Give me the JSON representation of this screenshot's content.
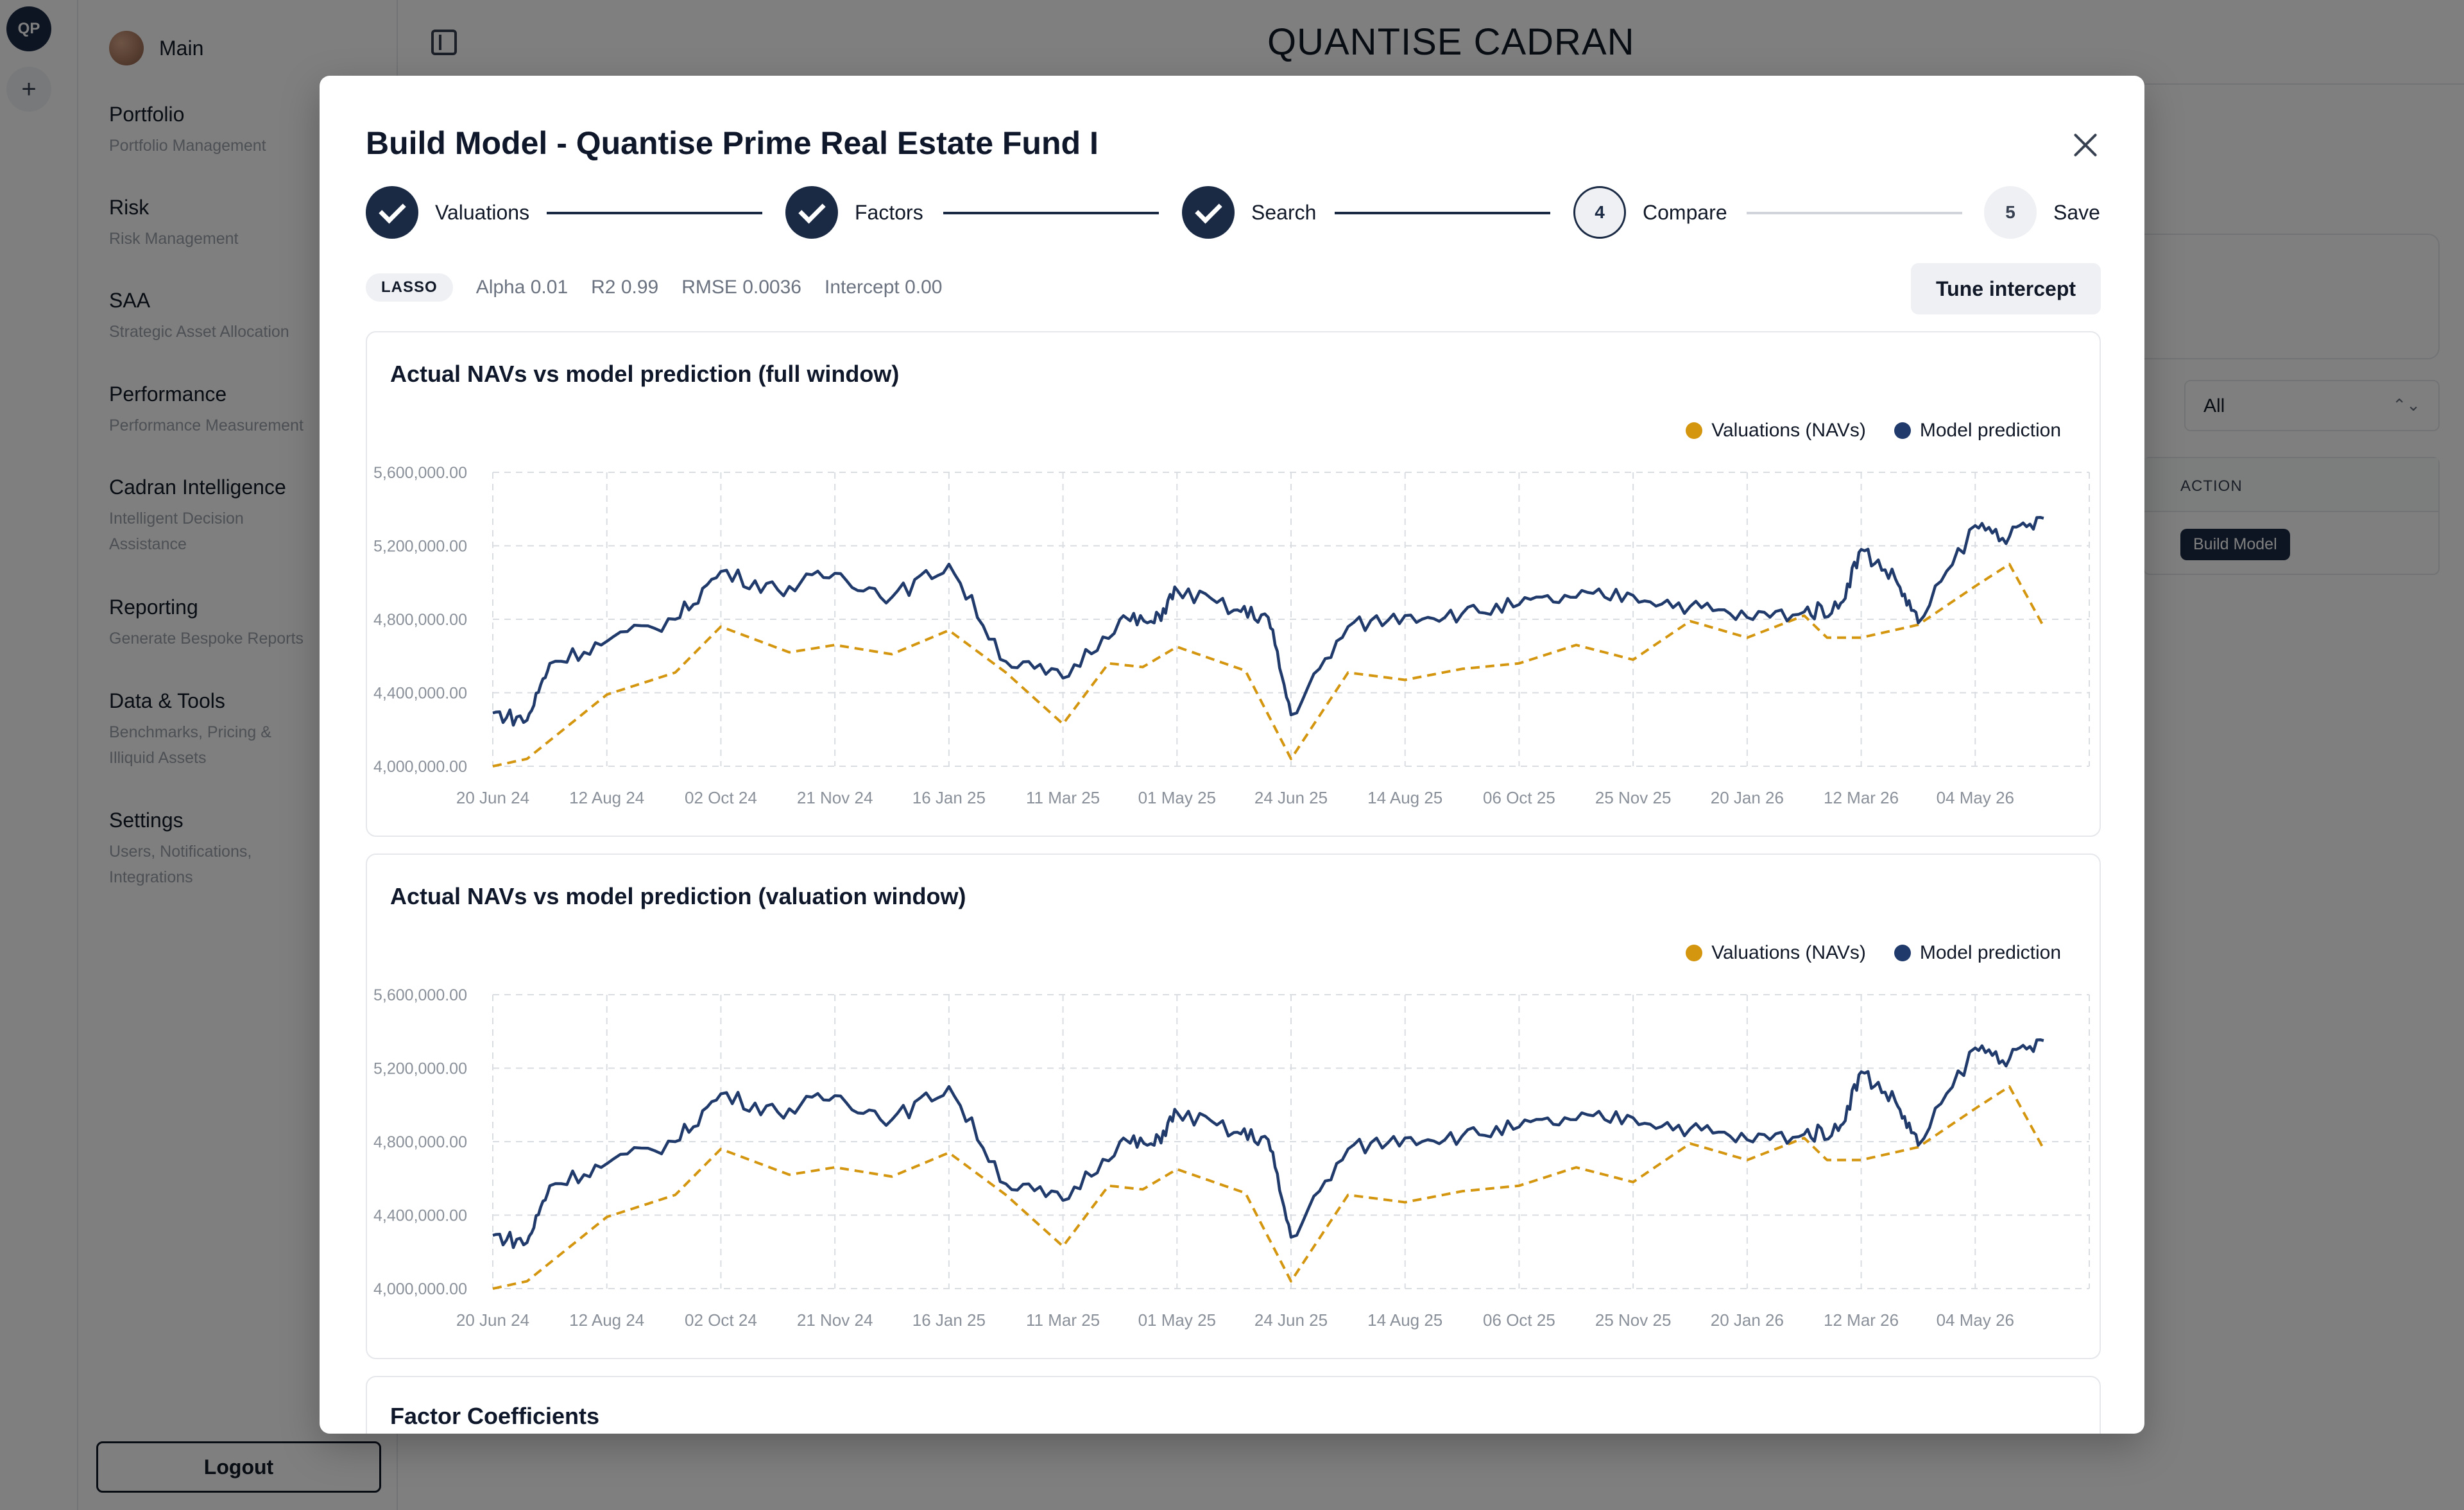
{
  "rail": {
    "avatar": "QP",
    "add": "+"
  },
  "sidebar": {
    "main": "Main",
    "items": [
      {
        "title": "Portfolio",
        "subtitle": "Portfolio Management"
      },
      {
        "title": "Risk",
        "subtitle": "Risk Management"
      },
      {
        "title": "SAA",
        "subtitle": "Strategic Asset Allocation"
      },
      {
        "title": "Performance",
        "subtitle": "Performance Measurement"
      },
      {
        "title": "Cadran Intelligence",
        "subtitle": "Intelligent Decision Assistance"
      },
      {
        "title": "Reporting",
        "subtitle": "Generate Bespoke Reports"
      },
      {
        "title": "Data & Tools",
        "subtitle": "Benchmarks, Pricing & Illiquid Assets"
      },
      {
        "title": "Settings",
        "subtitle": "Users, Notifications, Integrations"
      }
    ],
    "logout": "Logout"
  },
  "header": {
    "title": "QUANTISE CADRAN"
  },
  "background": {
    "filter_value": "All",
    "table_header": "ACTION",
    "build_button": "Build Model"
  },
  "modal": {
    "title": "Build Model - Quantise Prime Real Estate Fund I",
    "steps": [
      {
        "label": "Valuations",
        "state": "done"
      },
      {
        "label": "Factors",
        "state": "done"
      },
      {
        "label": "Search",
        "state": "done"
      },
      {
        "label": "Compare",
        "state": "active",
        "number": "4"
      },
      {
        "label": "Save",
        "state": "todo",
        "number": "5"
      }
    ],
    "model_badge": "LASSO",
    "metrics": {
      "alpha": "Alpha 0.01",
      "r2": "R2 0.99",
      "rmse": "RMSE 0.0036",
      "intercept": "Intercept 0.00"
    },
    "tune_button": "Tune intercept",
    "coef_title": "Factor Coefficients"
  },
  "colors": {
    "valuations": "#d4960f",
    "prediction": "#1f3a6b"
  },
  "chart_data": [
    {
      "type": "line",
      "title": "Actual NAVs vs model prediction (full window)",
      "x_ticks": [
        "20 Jun 24",
        "12 Aug 24",
        "02 Oct 24",
        "21 Nov 24",
        "16 Jan 25",
        "11 Mar 25",
        "01 May 25",
        "24 Jun 25",
        "14 Aug 25",
        "06 Oct 25",
        "25 Nov 25",
        "20 Jan 26",
        "12 Mar 26",
        "04 May 26"
      ],
      "y_ticks": [
        "5,600,000.00",
        "5,200,000.00",
        "4,800,000.00",
        "4,400,000.00",
        "4,000,000.00"
      ],
      "ylim": [
        4000000,
        5600000
      ],
      "legend": "top-right",
      "grid": true,
      "series": [
        {
          "name": "Valuations (NAVs)",
          "style": "dashed",
          "x": [
            0,
            0.3,
            1,
            1.6,
            2,
            2.6,
            3,
            3.5,
            4,
            4.5,
            5,
            5.4,
            5.7,
            6,
            6.6,
            7,
            7.5,
            8,
            8.5,
            9,
            9.5,
            10,
            10.5,
            11,
            11.5,
            11.7,
            12,
            12.5,
            13,
            13.3,
            13.6
          ],
          "values": [
            4000000,
            4040000,
            4390000,
            4510000,
            4760000,
            4620000,
            4660000,
            4610000,
            4740000,
            4510000,
            4230000,
            4560000,
            4540000,
            4650000,
            4520000,
            4040000,
            4510000,
            4470000,
            4530000,
            4560000,
            4660000,
            4580000,
            4790000,
            4700000,
            4820000,
            4700000,
            4700000,
            4770000,
            4980000,
            5100000,
            4760000
          ]
        },
        {
          "name": "Model prediction",
          "style": "solid",
          "x": [
            0,
            0.3,
            0.5,
            1,
            1.6,
            2,
            2.5,
            3,
            3.5,
            4,
            4.5,
            5,
            5.5,
            5.8,
            6,
            6.5,
            6.8,
            7,
            7.5,
            8,
            8.5,
            9,
            9.5,
            10,
            10.5,
            11,
            11.5,
            11.8,
            12,
            12.3,
            12.5,
            13,
            13.3,
            13.6
          ],
          "values": [
            4290000,
            4250000,
            4560000,
            4680000,
            4800000,
            5060000,
            4960000,
            5050000,
            4920000,
            5100000,
            4570000,
            4480000,
            4800000,
            4780000,
            4960000,
            4850000,
            4810000,
            4280000,
            4760000,
            4820000,
            4830000,
            4880000,
            4920000,
            4930000,
            4870000,
            4810000,
            4840000,
            4860000,
            5180000,
            5020000,
            4780000,
            5310000,
            5250000,
            5350000
          ]
        }
      ]
    },
    {
      "type": "line",
      "title": "Actual NAVs vs model prediction (valuation window)",
      "x_ticks": [
        "20 Jun 24",
        "12 Aug 24",
        "02 Oct 24",
        "21 Nov 24",
        "16 Jan 25",
        "11 Mar 25",
        "01 May 25",
        "24 Jun 25",
        "14 Aug 25",
        "06 Oct 25",
        "25 Nov 25",
        "20 Jan 26",
        "12 Mar 26",
        "04 May 26"
      ],
      "y_ticks": [
        "5,600,000.00",
        "5,200,000.00",
        "4,800,000.00",
        "4,400,000.00",
        "4,000,000.00"
      ],
      "ylim": [
        4000000,
        5600000
      ],
      "legend": "top-right",
      "grid": true,
      "series": [
        {
          "name": "Valuations (NAVs)",
          "style": "dashed",
          "x": [
            0,
            0.3,
            1,
            1.6,
            2,
            2.6,
            3,
            3.5,
            4,
            4.5,
            5,
            5.4,
            5.7,
            6,
            6.6,
            7,
            7.5,
            8,
            8.5,
            9,
            9.5,
            10,
            10.5,
            11,
            11.5,
            11.7,
            12,
            12.5,
            13,
            13.3,
            13.6
          ],
          "values": [
            4000000,
            4040000,
            4390000,
            4510000,
            4760000,
            4620000,
            4660000,
            4610000,
            4740000,
            4510000,
            4230000,
            4560000,
            4540000,
            4650000,
            4520000,
            4040000,
            4510000,
            4470000,
            4530000,
            4560000,
            4660000,
            4580000,
            4790000,
            4700000,
            4820000,
            4700000,
            4700000,
            4770000,
            4980000,
            5100000,
            4760000
          ]
        },
        {
          "name": "Model prediction",
          "style": "solid",
          "x": [
            0,
            0.3,
            0.5,
            1,
            1.6,
            2,
            2.5,
            3,
            3.5,
            4,
            4.5,
            5,
            5.5,
            5.8,
            6,
            6.5,
            6.8,
            7,
            7.5,
            8,
            8.5,
            9,
            9.5,
            10,
            10.5,
            11,
            11.5,
            11.8,
            12,
            12.3,
            12.5,
            13,
            13.3,
            13.6
          ],
          "values": [
            4290000,
            4250000,
            4560000,
            4680000,
            4800000,
            5060000,
            4960000,
            5050000,
            4920000,
            5100000,
            4570000,
            4480000,
            4800000,
            4780000,
            4960000,
            4850000,
            4810000,
            4280000,
            4760000,
            4820000,
            4830000,
            4880000,
            4920000,
            4930000,
            4870000,
            4810000,
            4840000,
            4860000,
            5180000,
            5020000,
            4780000,
            5310000,
            5250000,
            5350000
          ]
        }
      ]
    }
  ]
}
